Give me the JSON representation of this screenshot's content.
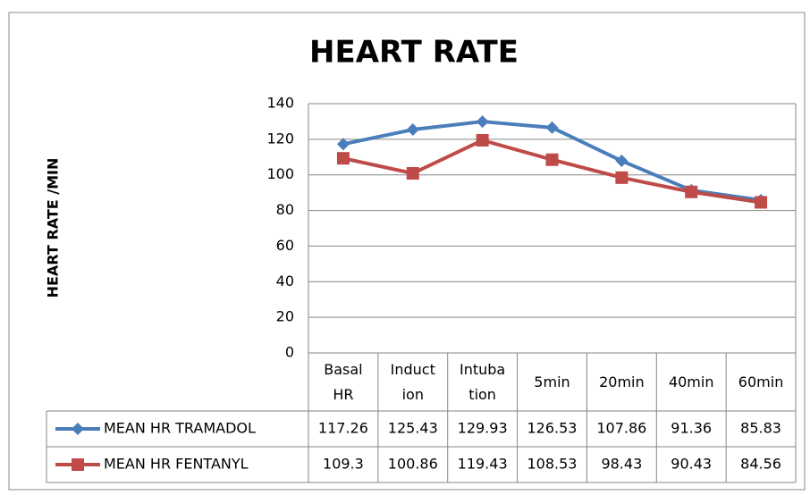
{
  "chart_data": {
    "type": "line",
    "title": "HEART RATE",
    "y_label": "HEART RATE /MIN",
    "categories": [
      "Basal HR",
      "Induction",
      "Intubation",
      "5min",
      "20min",
      "40min",
      "60min"
    ],
    "series": [
      {
        "name": "MEAN HR TRAMADOL",
        "color": "#4a7ebb",
        "marker": "diamond",
        "values": [
          117.26,
          125.43,
          129.93,
          126.53,
          107.86,
          91.36,
          85.83
        ]
      },
      {
        "name": "MEAN HR FENTANYL",
        "color": "#be4b48",
        "marker": "square",
        "values": [
          109.3,
          100.86,
          119.43,
          108.53,
          98.43,
          90.43,
          84.56
        ]
      }
    ],
    "ylim": [
      0,
      140
    ],
    "yticks": [
      0,
      20,
      40,
      60,
      80,
      100,
      120,
      140
    ],
    "grid": true,
    "data_table": true
  }
}
